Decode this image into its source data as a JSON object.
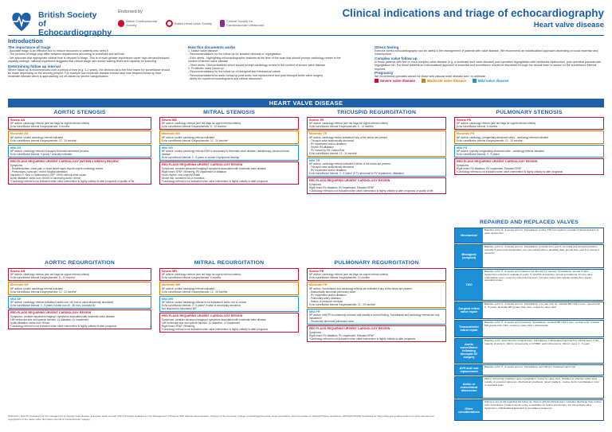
{
  "header": {
    "org_name": "British Society of Echocardiography",
    "endorsed_by": "Endorsed by",
    "endorser_1": "British Cardiovascular Society",
    "endorser_2": "British Heart Valve Society",
    "endorser_3": "Clinical Society for Cardiovascular Ultrasound",
    "title": "Clinical indications and triage of echocardiography",
    "subtitle": "Heart valve disease"
  },
  "intro": {
    "heading": "Introduction",
    "importance_heading": "The importance of triage",
    "importance_lines": [
      "- Accurate triage is an effective tool to reduce resources to patients who need it",
      "- The process of triage may differ between departments according to workflows and skill mix",
      "- We advocate that appropriate clinical time is devoted to triage. This is of even greater importance under high demand/reduced capacity settings; national experience suggests that clinical triage can reduce waiting times and capacity for scanning"
    ],
    "follow_up_heading": "Determining follow up interval",
    "follow_up_text": "Where follow up is recommended over a period of time (e.g. 1-2 years), the decision as to the time frame for surveillance should be made depending on the severity present. For example low moderate disease should have less frequent follow up than moderate disease which is approaching cut off values for severe categorisation.",
    "how_heading": "How this documents works",
    "how_lines": [
      "1. Native valve disease:",
      "- Recommendations for the follow up for isolated stenosis or regurgitation",
      "- Echo alerts - highlighting echocardiographic features at the time of the scan that should prompt cardiology review in the context of severe valve disease",
      "- Other alerts. Clinical features which should prompt cardiology review in the context of severe valve disease",
      "2. Prosthetic valve follow up:",
      "- Recommendations for the follow up of biological and mechanical valves",
      "- Recommendations for aortic follow up post aortic root replacement and post bicuspid aortic valve surgery",
      "- Alerts for repeat echocardiograms and clinical discussion"
    ],
    "stress_heading": "Stress testing",
    "stress_text": "Exercise stress echocardiography can be useful in the management of patients with valve disease. We recommend an individualised approach depending on local expertise and infrastructure.",
    "complex_heading": "Complex valve follow up",
    "complex_text": "In those patients with two or more complex valve disease (e.g. a moderate mult valve disease) post operative regurgitation with ventricular dysfunction, post operative paravalvular regurgitation etc. For these patients an individualised approach is essential and surveillance should be discussed through the clinical team to advise on the surveillance interval required.",
    "pregnancy_heading": "Pregnancy",
    "pregnancy_text": "We recommend specialist advice for those with valvular heart disease and / or antibiotic",
    "legend": [
      {
        "label": "Severe valve disease",
        "color": "#c8102e"
      },
      {
        "label": "Moderate valve disease",
        "color": "#e07a00"
      },
      {
        "label": "Mild valve disease",
        "color": "#1d8fd6"
      }
    ]
  },
  "banner": "HEART VALVE DISEASE",
  "columns": {
    "aortic_stenosis": "AORTIC STENOSIS",
    "mitral_stenosis": "MITRAL STENOSIS",
    "tricuspid_regurgitation": "TRICUSPID REGURGITATION",
    "pulmonary_stenosis": "PULMONARY STENOSIS",
    "aortic_regurgitation": "AORTIC REGURGITATION",
    "mitral_regurgitation": "MITRAL REGURGITATION",
    "pulmonary_regurgitation": "PULMONARY REGURGITATION",
    "repaired": "REPAIRED AND REPLACED VALVES"
  },
  "boxes": {
    "as_severe": {
      "title": "Severe AS",
      "lines": [
        "NP advice: cardiology referral (see red flags for urgent referral criteria)",
        "Echo surveillance interval if asymptomatic: 6 months"
      ]
    },
    "as_moderate": {
      "title": "Moderate AS",
      "lines": [
        "NP advice: routine cardiology referral indicated",
        "Echo surveillance interval if asymptomatic: 12 - 24 months*"
      ]
    },
    "as_mild": {
      "title": "Mild AS",
      "lines": [
        "NP advice: cardiology referral if bicuspid AV/aortic/connective process",
        "Echo surveillance interval: 3 yearly / clinically indicated"
      ]
    },
    "as_flags": {
      "title": "RED FLAGS REQUIRING URGENT CARDIOLOGY (WITHIN 2 WEEKS) REVIEW",
      "lines": [
        "Symptoms",
        "- Breathlessness, chest pain or heart failure signs require urgent cardiology review",
        "- Presyncope / syncope / recent hospital admission",
        "Impaired LV: New LV dysfunction (LVEF <50%) without other cause",
        "Aortic dilatation: aortic root >50mm or ascending aorta >45mm",
        "*Cardiology referral is not indicated when valve intervention is highly unlikely to alter prognosis or quality of life"
      ]
    },
    "ms_severe": {
      "title": "Severe MS",
      "lines": [
        "NP advice: cardiology referral (see red flags for urgent referral criteria)",
        "Echo surveillance interval if asymptomatic: 6 - 12 months*"
      ]
    },
    "ms_moderate": {
      "title": "Moderate MS",
      "lines": [
        "NP advice: routine cardiology referral indicated",
        "Echo surveillance interval if asymptomatic: 12 - 24 months*"
      ]
    },
    "ms_mild": {
      "title": "Mild MS",
      "lines": [
        "NP advice: routine cardiology referral if MS is secondary to rheumatic heart disease, radiotherapy, carcinoid heart disease",
        "Echo surveillance interval: 3 - 5 years or sooner if symptoms develop"
      ]
    },
    "ms_flags": {
      "title": "RED FLAGS REQUIRING URGENT CARDIOLOGY REVIEW",
      "lines": [
        "Symptoms: consider advanced imaging if symptoms associated with moderate valve disease",
        "Right heart: SPAP >50mmHg, RV impairment or dilatation",
        "Heart rhythm: new onset AF/flutter",
        "Stroke risk: combined SA or thrombus",
        "*Cardiology referral is not indicated when valve intervention is highly unlikely to alter prognosis"
      ]
    },
    "tr_severe": {
      "title": "Severe TR",
      "lines": [
        "NP advice: cardiology referral (see red flags for urgent referral criteria)",
        "Echo surveillance interval if asymptomatic: 6 - 12 months"
      ]
    },
    "tr_moderate": {
      "title": "Moderate TR",
      "lines": [
        "NP advice: cardiology review indicated if any of the below are present",
        "- Tricuspid valve anatomically abnormal",
        "- RV impairment and/or dilatation",
        "- Severe RA dilatation",
        "- PV moved by PH / raised fluid",
        "Echo surveillance interval: 12 - 24 months*"
      ]
    },
    "tr_mild": {
      "title": "Mild TR",
      "lines": [
        "NP advice: cardiology referral indicated if either of the below are present",
        "- Tricuspid valve anatomically abnormal",
        "- RV impairment and/or dilatation",
        "Echo surveillance interval: 3 - 5 years* (if TV abnormal or RV impairment / dilatation)"
      ]
    },
    "tr_flags": {
      "title": "RED FLAGS REQUIRING URGENT CARDIOLOGY REVIEW",
      "lines": [
        "Symptoms",
        "Right heart: RV dilatation, RV impairment, Elevated SPAP",
        "*Cardiology referral is not indicated when valve intervention is highly unlikely to alter prognosis or quality of life"
      ]
    },
    "ps_severe": {
      "title": "Severe PS",
      "lines": [
        "NP advice: cardiology referral (see red flags for urgent referral criteria)",
        "Echo surveillance interval: 6 months"
      ]
    },
    "ps_moderate": {
      "title": "Moderate PS",
      "lines": [
        "NP advice: cardiology (congenitally abnormal valve) - cardiology referral indicated",
        "Echo surveillance interval if asymptomatic: 12 - 24 months*"
      ]
    },
    "ps_mild": {
      "title": "Mild PS",
      "lines": [
        "NP advice: typically congenitally abnormal valve - cardiology referral indicated",
        "Echo surveillance interval: 3 - 5 years*"
      ]
    },
    "ps_flags": {
      "title": "RED FLAGS REQUIRING URGENT CARDIOLOGY REVIEW",
      "lines": [
        "Symptoms",
        "Right heart: RV dilatation, RV impairment, Elevated SPAP",
        "*Cardiology referral is not indicated when valve intervention is highly unlikely to alter prognosis"
      ]
    },
    "ar_severe": {
      "title": "Severe AR",
      "lines": [
        "NP advice: cardiology referral (see red flags for urgent referral criteria)",
        "Echo surveillance interval if asymptomatic: 6 - 12 months*"
      ]
    },
    "ar_moderate": {
      "title": "Moderate AR",
      "lines": [
        "NP advice: routine cardiology referral indicated",
        "Echo surveillance interval if asymptomatic: 12 - 24 months*"
      ]
    },
    "ar_mild": {
      "title": "Mild AR",
      "lines": [
        "NP advice: cardiology referral indicated if aortic root >40 mm or valve abnormally structured",
        "Echo surveillance interval: 3 - 5 years if aortic root 40 - 50 mm / bicuspid AV"
      ]
    },
    "ar_flags": {
      "title": "RED FLAGS REQUIRING URGENT CARDIOLOGY REVIEW",
      "lines": [
        "Symptoms: consider advanced imaging if symptoms associated with moderate valve disease",
        "Left ventricular size and systolic function: LV dilatation, LV impairment",
        "Aortic dilatation: aortic root >50mm",
        "*Cardiology referral is not indicated when valve intervention is highly unlikely to alter prognosis"
      ]
    },
    "mr_severe": {
      "title": "Severe MR",
      "lines": [
        "NP advice: cardiology referral (see red flags for urgent referral criteria)",
        "Echo surveillance interval if asymptomatic: 6 months"
      ]
    },
    "mr_moderate": {
      "title": "Moderate MR",
      "lines": [
        "NP advice: routine cardiology referral indicated",
        "Echo surveillance interval if asymptomatic: 12 - 24 months"
      ]
    },
    "mr_mild": {
      "title": "Mild MR",
      "lines": [
        "NP advice: routine cardiology referral is not indicated if aortic root is normal",
        "Echo surveillance interval: 3 - 5 years* if valve is structurally abnormal",
        "Not required for secondary MR"
      ]
    },
    "mr_flags": {
      "title": "RED FLAGS REQUIRING URGENT CARDIOLOGY REVIEW",
      "lines": [
        "Symptoms: consider advanced imaging if symptoms associated with moderate valve disease",
        "Left ventricular size and systolic function: LV dilatation, LV impairment",
        "Right heart: SPAP >50mmHg",
        "*Cardiology referral is not indicated when valve intervention is highly unlikely to alter prognosis"
      ]
    },
    "pr_severe": {
      "title": "Severe PR",
      "lines": [
        "NP advice: cardiology referral (see red flags for urgent referral criteria)",
        "Echo surveillance interval if asymptomatic: 12 months"
      ]
    },
    "pr_moderate": {
      "title": "Moderate PR",
      "lines": [
        "NP advice: Surveillance and cardiology referral are indicated if any of the below are present",
        "- Anatomically abnormal pulmonary valve",
        "- RV impairment and/or dilatation",
        "- Pulmonary artery dilatation",
        "- History of pressure overload",
        "Echo surveillance interval if asymptomatic: 12 - 24 months*"
      ]
    },
    "pr_mild": {
      "title": "Mild PR",
      "lines": [
        "NP advice: mild PR is commonly common and usually a normal finding. Surveillance and cardiology referral are only indicated if:",
        "- Structurally abnormal pulmonary valve"
      ]
    },
    "pr_flags": {
      "title": "RED FLAGS REQUIRING URGENT CARDIOLOGY REVIEW",
      "lines": [
        "Symptoms",
        "Right heart: RV dilatation, RV impairment, Elevated SPAP",
        "*Cardiology referral is not indicated when valve intervention is highly unlikely to alter prognosis"
      ]
    }
  },
  "repaired_rows": [
    {
      "label": "Mechanical",
      "text": "Baseline echo: 6 - 8 weeks post op. Surveillance: routine TTE not required; consider if clinical features of valve dysfunction"
    },
    {
      "label": "Biological (surgical)",
      "text": "Baseline echo: 6 - 8 weeks post op. Surveillance: annually from year 5; for mitral and tricuspid positions: annually 5 years post implantation. For new valves with no durability data, annual from year 5 or sooner if concerns"
    },
    {
      "label": "TAVI",
      "text": "Baseline echo: 6 - 8 weeks post implant or as directed by operator. Surveillance: annual if valve dysfunction suspected; evaluate 5 yearly. If mild PVL at baseline: annual surveillance. If more valve regurgitation seen, review by interventional team. Complex cases with valvular dysfunction require specialist review"
    },
    {
      "label": "Surgical mitral valve repair",
      "text": "Baseline echo: 6 - 8 weeks post op. Surveillance: one year post op; residual MR mild or less - repeat echo 3 - 5 yearly. Residual MR greater than mild - review by valve clinic"
    },
    {
      "label": "Transcatheter mitral repair",
      "text": "Baseline echo: 6 - 8 weeks post procedure. Surveillance: residual MR mild or less - annual echo; residual MR greater than mild - review by valve clinic / clinical team"
    },
    {
      "label": "Aortic surveillance following bicuspid AV surgery",
      "text": "Baseline echo: determined by surgical team. Surveillance: individualised approach by clinical team. If the majority of aorta is >40mm: annual echo or CT/MRI; aortic dimensions <40mm: every 3 - 5 years"
    },
    {
      "label": "AVR and root replacement",
      "text": "Baseline echo: 6 - 8 weeks post op. Surveillance: according to implanted valve type"
    },
    {
      "label": "Aortic or echoclinical discussion",
      "text": "Mild or worsening prosthetic valve regurgitation: review by valve clinic. Gradient or effective orifice area outside of expected reference. Mechanical prosthesis: raised gradient - review. Aortic root dilatation: refer to specialist team"
    },
    {
      "label": "Other considerations",
      "text": "If there is any doubt regarding the follow up, discuss with the clinical team. Consider discharge from routine echo surveillance if patient would not be a candidate for further intervention. For biosynthetic valve dysfunction, individualised approach to surveillance frequency"
    }
  ],
  "footer": "2020 ESC / EACTS Guidelines for the management of valvular heart disease. European Heart Journal. 2021 ACC/AHA Guideline for the Management of Patients With Valvular Heart Disease. A Report of the American College of Cardiology/American Heart Association Joint Committee on Clinical Practice Guidelines. 2020 EACVI/ASE Guidelines for diagnosing and grading aortic and mitral stenosis and regurgitation of the native valve. European Journal of Cardiovascular Imaging."
}
